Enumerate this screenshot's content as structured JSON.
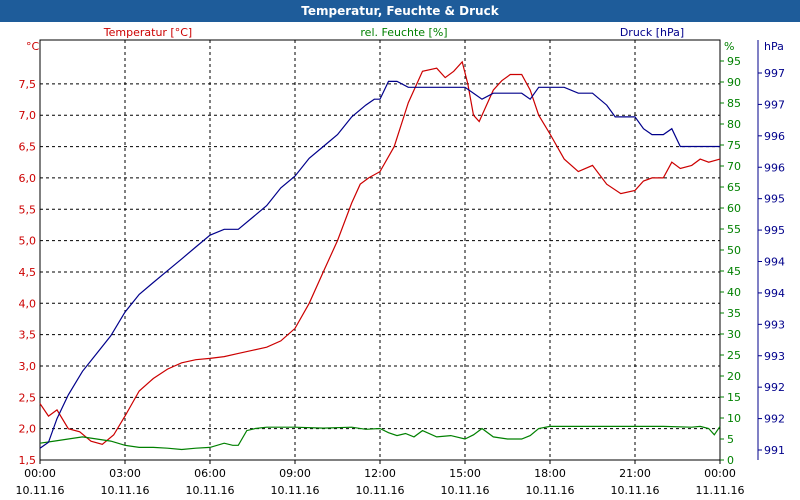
{
  "window": {
    "title": "Temperatur, Feuchte & Druck"
  },
  "colors": {
    "temperature": "#cc0000",
    "humidity": "#008000",
    "pressure": "#00008b",
    "titlebar": "#1e5c9a",
    "grid": "#000000"
  },
  "chart_data": {
    "type": "line",
    "title": "Temperatur, Feuchte & Druck",
    "axes": {
      "left": {
        "unit": "°C",
        "series_label": "Temperatur [°C]",
        "range": [
          1.5,
          8.2
        ],
        "ticks": [
          "1,5",
          "2,0",
          "2,5",
          "3,0",
          "3,5",
          "4,0",
          "4,5",
          "5,0",
          "5,5",
          "6,0",
          "6,5",
          "7,0",
          "7,5"
        ]
      },
      "right1": {
        "unit": "%",
        "series_label": "rel. Feuchte [%]",
        "range": [
          0,
          100
        ],
        "ticks": [
          "0",
          "5",
          "10",
          "15",
          "20",
          "25",
          "30",
          "35",
          "40",
          "45",
          "50",
          "55",
          "60",
          "65",
          "70",
          "75",
          "80",
          "85",
          "90",
          "95"
        ]
      },
      "right2": {
        "unit": "hPa",
        "series_label": "Druck [hPa]",
        "range": [
          990.8,
          997.9
        ],
        "ticks": [
          "991",
          "992",
          "992",
          "993",
          "993",
          "994",
          "994",
          "995",
          "995",
          "996",
          "996",
          "997",
          "997"
        ]
      }
    },
    "x_ticks": [
      {
        "time": "00:00",
        "date": "10.11.16"
      },
      {
        "time": "03:00",
        "date": "10.11.16"
      },
      {
        "time": "06:00",
        "date": "10.11.16"
      },
      {
        "time": "09:00",
        "date": "10.11.16"
      },
      {
        "time": "12:00",
        "date": "10.11.16"
      },
      {
        "time": "15:00",
        "date": "10.11.16"
      },
      {
        "time": "18:00",
        "date": "10.11.16"
      },
      {
        "time": "21:00",
        "date": "10.11.16"
      },
      {
        "time": "00:00",
        "date": "11.11.16"
      }
    ],
    "x_range_hours": [
      0,
      24
    ],
    "grid": true,
    "series": [
      {
        "name": "Temperatur [°C]",
        "axis": "left",
        "color": "#cc0000",
        "x": [
          0,
          0.3,
          0.6,
          1.0,
          1.4,
          1.8,
          2.2,
          2.6,
          3.0,
          3.5,
          4.0,
          4.5,
          5.0,
          5.5,
          6.0,
          6.5,
          7.0,
          7.5,
          8.0,
          8.5,
          9.0,
          9.5,
          10.0,
          10.5,
          11.0,
          11.3,
          11.6,
          12.0,
          12.5,
          13.0,
          13.5,
          14.0,
          14.3,
          14.6,
          14.9,
          15.1,
          15.3,
          15.5,
          15.7,
          16.0,
          16.3,
          16.6,
          17.0,
          17.3,
          17.6,
          18.0,
          18.5,
          19.0,
          19.5,
          20.0,
          20.5,
          21.0,
          21.3,
          21.6,
          22.0,
          22.3,
          22.6,
          23.0,
          23.3,
          23.6,
          24.0
        ],
        "values": [
          2.4,
          2.2,
          2.3,
          2.0,
          1.95,
          1.8,
          1.75,
          1.9,
          2.2,
          2.6,
          2.8,
          2.95,
          3.05,
          3.1,
          3.12,
          3.15,
          3.2,
          3.25,
          3.3,
          3.4,
          3.6,
          4.0,
          4.5,
          5.0,
          5.6,
          5.9,
          6.0,
          6.1,
          6.5,
          7.2,
          7.7,
          7.75,
          7.6,
          7.7,
          7.85,
          7.5,
          7.0,
          6.9,
          7.1,
          7.4,
          7.55,
          7.65,
          7.65,
          7.4,
          7.0,
          6.7,
          6.3,
          6.1,
          6.2,
          5.9,
          5.75,
          5.8,
          5.95,
          6.0,
          6.0,
          6.25,
          6.15,
          6.2,
          6.3,
          6.25,
          6.3
        ]
      },
      {
        "name": "rel. Feuchte [%]",
        "axis": "right1",
        "color": "#008000",
        "x": [
          0,
          0.5,
          1.0,
          1.5,
          2.0,
          2.5,
          3.0,
          3.5,
          4.0,
          4.5,
          5.0,
          5.5,
          6.0,
          6.5,
          6.8,
          7.0,
          7.3,
          7.6,
          8.0,
          9.0,
          10.0,
          11.0,
          11.5,
          12.0,
          12.3,
          12.6,
          12.9,
          13.2,
          13.5,
          14.0,
          14.5,
          15.0,
          15.3,
          15.6,
          16.0,
          16.5,
          17.0,
          17.3,
          17.6,
          18.0,
          19.0,
          20.0,
          21.0,
          22.0,
          23.0,
          23.3,
          23.6,
          23.8,
          24.0
        ],
        "values": [
          4,
          4.5,
          5,
          5.5,
          5,
          4.5,
          3.5,
          3,
          3,
          2.8,
          2.5,
          2.8,
          3,
          4,
          3.5,
          3.5,
          7,
          7.5,
          7.8,
          7.8,
          7.6,
          7.8,
          7.3,
          7.5,
          6.5,
          5.8,
          6.3,
          5.5,
          7,
          5.5,
          5.8,
          5,
          6,
          7.5,
          5.5,
          5,
          5,
          5.8,
          7.5,
          8,
          8,
          8,
          8,
          8,
          7.8,
          8,
          7.5,
          6,
          8
        ]
      },
      {
        "name": "Druck [hPa]",
        "axis": "right2",
        "color": "#00008b",
        "x": [
          0,
          0.3,
          0.6,
          1.0,
          1.5,
          2.0,
          2.5,
          3.0,
          3.5,
          4.0,
          4.5,
          5.0,
          5.5,
          6.0,
          6.5,
          7.0,
          7.5,
          8.0,
          8.5,
          9.0,
          9.5,
          10.0,
          10.5,
          11.0,
          11.5,
          11.8,
          12.0,
          12.3,
          12.6,
          13.0,
          14.0,
          15.0,
          15.3,
          15.6,
          16.0,
          17.0,
          17.3,
          17.6,
          18.0,
          18.5,
          19.0,
          19.5,
          20.0,
          20.3,
          20.6,
          21.0,
          21.3,
          21.6,
          22.0,
          22.3,
          22.6,
          23.0,
          23.3,
          23.6,
          24.0
        ],
        "values": [
          991.0,
          991.1,
          991.5,
          991.9,
          992.3,
          992.6,
          992.9,
          993.3,
          993.6,
          993.8,
          994.0,
          994.2,
          994.4,
          994.6,
          994.7,
          994.7,
          994.9,
          995.1,
          995.4,
          995.6,
          995.9,
          996.1,
          996.3,
          996.6,
          996.8,
          996.9,
          996.9,
          997.2,
          997.2,
          997.1,
          997.1,
          997.1,
          997.0,
          996.9,
          997.0,
          997.0,
          996.9,
          997.1,
          997.1,
          997.1,
          997.0,
          997.0,
          996.8,
          996.6,
          996.6,
          996.6,
          996.4,
          996.3,
          996.3,
          996.4,
          996.1,
          996.1,
          996.1,
          996.1,
          996.1
        ]
      }
    ]
  }
}
